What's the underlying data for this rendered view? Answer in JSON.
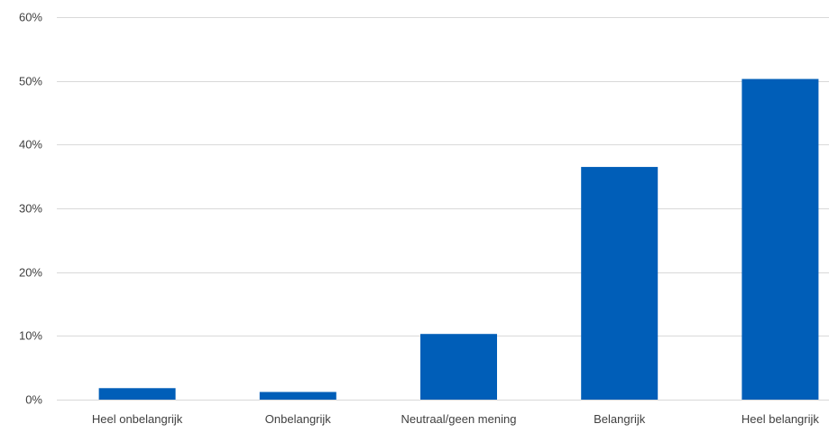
{
  "chart_data": {
    "type": "bar",
    "categories": [
      "Heel onbelangrijk",
      "Onbelangrijk",
      "Neutraal/geen mening",
      "Belangrijk",
      "Heel belangrijk"
    ],
    "series": [
      {
        "values": [
          1.8,
          1.2,
          10.3,
          36.5,
          50.3
        ]
      }
    ],
    "ylim": [
      0,
      60
    ],
    "yticks": [
      0,
      10,
      20,
      30,
      40,
      50,
      60
    ],
    "ytick_labels": [
      "0%",
      "10%",
      "20%",
      "30%",
      "40%",
      "50%",
      "60%"
    ],
    "grid": true,
    "legend": "none",
    "bar_color": "#005EB8"
  }
}
